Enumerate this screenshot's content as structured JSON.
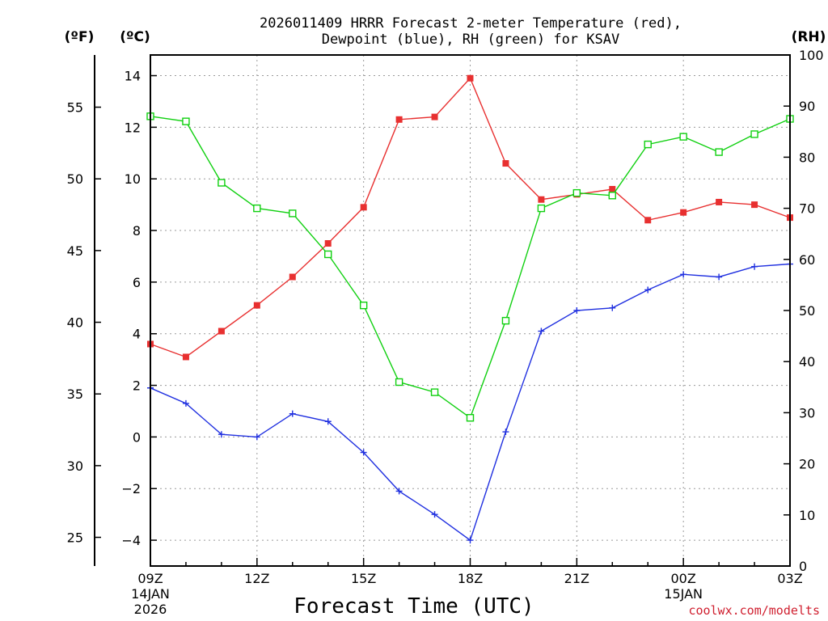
{
  "chart_data": {
    "type": "line",
    "title_line1": "2026011409 HRRR Forecast 2-meter Temperature (red),",
    "title_line2": "Dewpoint (blue), RH (green) for KSAV",
    "xlabel": "Forecast Time (UTC)",
    "credit": "coolwx.com/modelts",
    "units": {
      "fahrenheit": "(ºF)",
      "celsius": "(ºC)",
      "rh": "(RH)"
    },
    "x": [
      "09Z",
      "10Z",
      "11Z",
      "12Z",
      "13Z",
      "14Z",
      "15Z",
      "16Z",
      "17Z",
      "18Z",
      "19Z",
      "20Z",
      "21Z",
      "22Z",
      "23Z",
      "00Z",
      "01Z",
      "02Z",
      "03Z"
    ],
    "x_ticks": [
      {
        "hour": 0,
        "label": "09Z",
        "sub1": "14JAN",
        "sub2": "2026"
      },
      {
        "hour": 3,
        "label": "12Z",
        "sub1": "",
        "sub2": ""
      },
      {
        "hour": 6,
        "label": "15Z",
        "sub1": "",
        "sub2": ""
      },
      {
        "hour": 9,
        "label": "18Z",
        "sub1": "",
        "sub2": ""
      },
      {
        "hour": 12,
        "label": "21Z",
        "sub1": "",
        "sub2": ""
      },
      {
        "hour": 15,
        "label": "00Z",
        "sub1": "15JAN",
        "sub2": ""
      },
      {
        "hour": 18,
        "label": "03Z",
        "sub1": "",
        "sub2": ""
      }
    ],
    "y_celsius": {
      "range": [
        -5,
        14.8
      ],
      "ticks": [
        -4,
        -2,
        0,
        2,
        4,
        6,
        8,
        10,
        12,
        14
      ]
    },
    "y_fahrenheit": {
      "ticks": [
        25,
        30,
        35,
        40,
        45,
        50,
        55
      ]
    },
    "y_rh": {
      "range": [
        0,
        100
      ],
      "ticks": [
        0,
        10,
        20,
        30,
        40,
        50,
        60,
        70,
        80,
        90,
        100
      ]
    },
    "grid": true,
    "series": [
      {
        "key": "temperature",
        "axis": "celsius",
        "color": "#e83030",
        "marker": "filled-square",
        "values": [
          3.6,
          3.1,
          4.1,
          5.1,
          6.2,
          7.5,
          8.9,
          12.3,
          12.4,
          13.9,
          10.6,
          9.2,
          9.4,
          9.6,
          8.4,
          8.7,
          9.1,
          9.0,
          8.5
        ]
      },
      {
        "key": "dewpoint",
        "axis": "celsius",
        "color": "#2030e0",
        "marker": "plus",
        "values": [
          1.9,
          1.3,
          0.1,
          0.0,
          0.9,
          0.6,
          -0.6,
          -2.1,
          -3.0,
          -4.0,
          0.2,
          4.1,
          4.9,
          5.0,
          5.7,
          6.3,
          6.2,
          6.6,
          6.7
        ]
      },
      {
        "key": "rh",
        "axis": "rh",
        "color": "#10d010",
        "marker": "open-square",
        "values": [
          88,
          87,
          75,
          70,
          69,
          61,
          51,
          36,
          34,
          29,
          48,
          70,
          73,
          72.5,
          82.5,
          84,
          81,
          84.5,
          87.5
        ]
      }
    ]
  }
}
